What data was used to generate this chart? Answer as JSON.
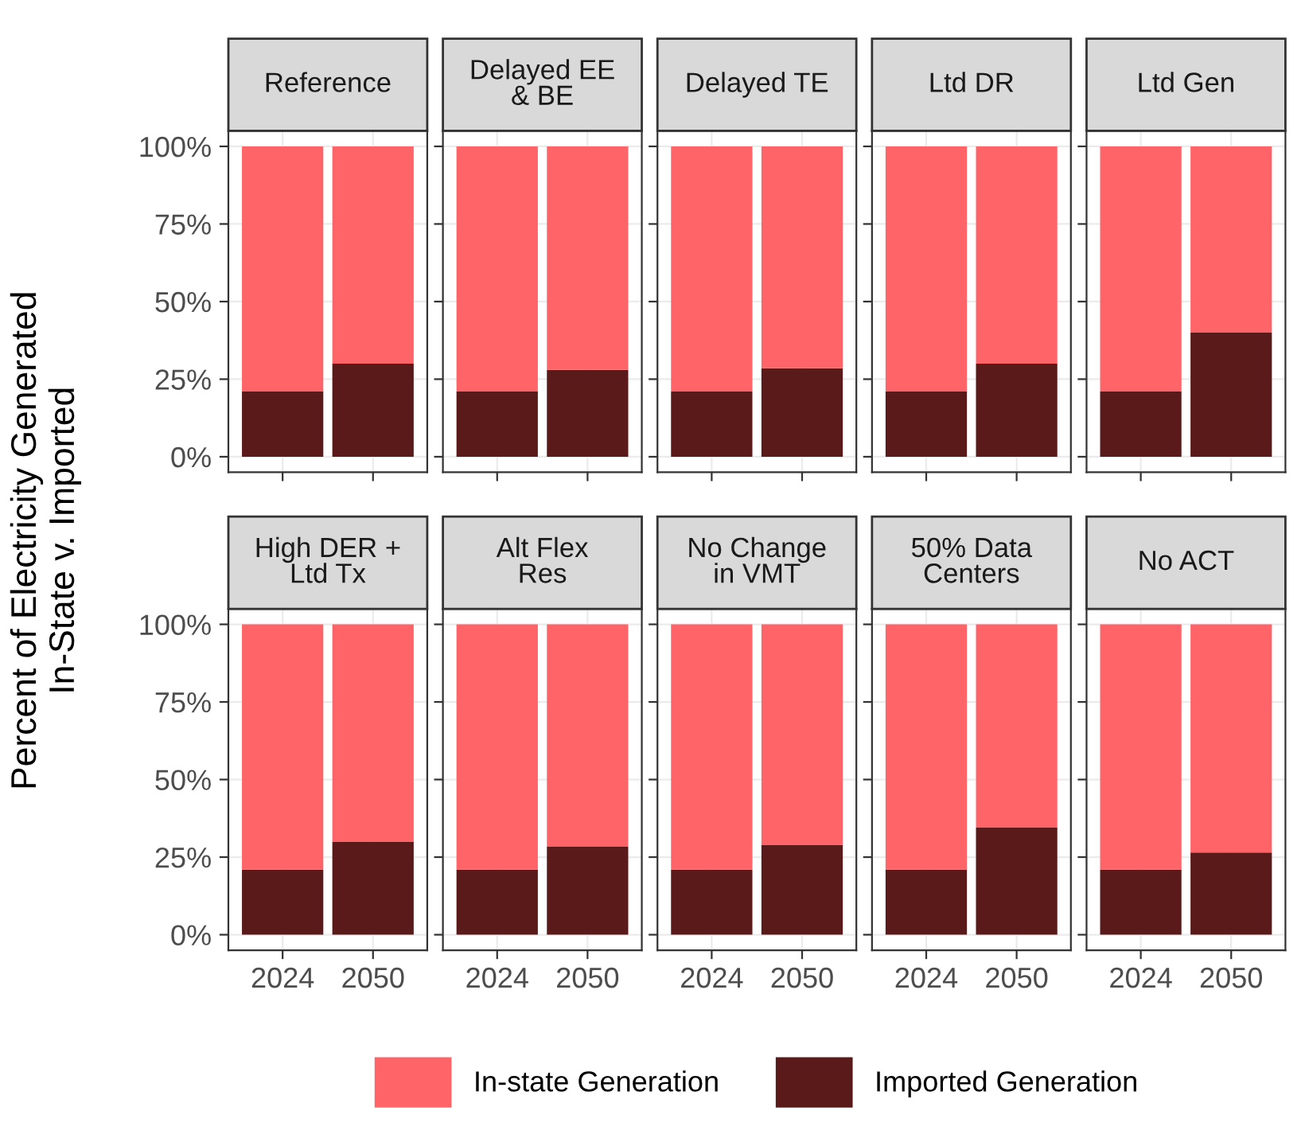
{
  "chart_data": [
    {
      "type": "bar",
      "stacked": true,
      "title": "Reference",
      "ylabel": "Percent of Electricity Generated\nIn-State v. Imported",
      "categories": [
        "2024",
        "2050"
      ],
      "ylim": [
        -5,
        105
      ],
      "yticks": [
        {
          "value": 0,
          "label": "0%"
        },
        {
          "value": 25,
          "label": "25%"
        },
        {
          "value": 50,
          "label": "50%"
        },
        {
          "value": 75,
          "label": "75%"
        },
        {
          "value": 100,
          "label": "100%"
        }
      ],
      "grid": true,
      "tick_labels": "y",
      "legend": "bottom",
      "series": [
        {
          "name": "Imported Generation",
          "color": "#5a1a1a",
          "values": [
            21,
            30
          ]
        },
        {
          "name": "In-state Generation",
          "color": "#ff6468",
          "values": [
            79,
            70
          ]
        }
      ]
    },
    {
      "type": "bar",
      "stacked": true,
      "title": "Delayed EE\n& BE",
      "categories": [
        "2024",
        "2050"
      ],
      "ylim": [
        -5,
        105
      ],
      "yticks": [
        {
          "value": 0,
          "label": null
        },
        {
          "value": 25,
          "label": null
        },
        {
          "value": 50,
          "label": null
        },
        {
          "value": 75,
          "label": null
        },
        {
          "value": 100,
          "label": null
        }
      ],
      "grid": true,
      "tick_labels": false,
      "series": [
        {
          "color": "#5a1a1a",
          "values": [
            21,
            28
          ]
        },
        {
          "color": "#ff6468",
          "values": [
            79,
            72
          ]
        }
      ]
    },
    {
      "type": "bar",
      "stacked": true,
      "title": "Delayed TE",
      "categories": [
        "2024",
        "2050"
      ],
      "ylim": [
        -5,
        105
      ],
      "yticks": [
        {
          "value": 0,
          "label": null
        },
        {
          "value": 25,
          "label": null
        },
        {
          "value": 50,
          "label": null
        },
        {
          "value": 75,
          "label": null
        },
        {
          "value": 100,
          "label": null
        }
      ],
      "grid": true,
      "tick_labels": false,
      "series": [
        {
          "color": "#5a1a1a",
          "values": [
            21,
            28.5
          ]
        },
        {
          "color": "#ff6468",
          "values": [
            79,
            71.5
          ]
        }
      ]
    },
    {
      "type": "bar",
      "stacked": true,
      "title": "Ltd DR",
      "categories": [
        "2024",
        "2050"
      ],
      "ylim": [
        -5,
        105
      ],
      "yticks": [
        {
          "value": 0,
          "label": null
        },
        {
          "value": 25,
          "label": null
        },
        {
          "value": 50,
          "label": null
        },
        {
          "value": 75,
          "label": null
        },
        {
          "value": 100,
          "label": null
        }
      ],
      "grid": true,
      "tick_labels": false,
      "series": [
        {
          "color": "#5a1a1a",
          "values": [
            21,
            30
          ]
        },
        {
          "color": "#ff6468",
          "values": [
            79,
            70
          ]
        }
      ]
    },
    {
      "type": "bar",
      "stacked": true,
      "title": "Ltd Gen",
      "categories": [
        "2024",
        "2050"
      ],
      "ylim": [
        -5,
        105
      ],
      "yticks": [
        {
          "value": 0,
          "label": null
        },
        {
          "value": 25,
          "label": null
        },
        {
          "value": 50,
          "label": null
        },
        {
          "value": 75,
          "label": null
        },
        {
          "value": 100,
          "label": null
        }
      ],
      "grid": true,
      "tick_labels": false,
      "series": [
        {
          "color": "#5a1a1a",
          "values": [
            21,
            40
          ]
        },
        {
          "color": "#ff6468",
          "values": [
            79,
            60
          ]
        }
      ]
    },
    {
      "type": "bar",
      "stacked": true,
      "title": "High DER +\nLtd Tx",
      "categories": [
        "2024",
        "2050"
      ],
      "ylim": [
        -5,
        105
      ],
      "yticks": [
        {
          "value": 0,
          "label": "0%"
        },
        {
          "value": 25,
          "label": "25%"
        },
        {
          "value": 50,
          "label": "50%"
        },
        {
          "value": 75,
          "label": "75%"
        },
        {
          "value": 100,
          "label": "100%"
        }
      ],
      "grid": true,
      "series": [
        {
          "color": "#5a1a1a",
          "values": [
            21,
            30
          ]
        },
        {
          "color": "#ff6468",
          "values": [
            79,
            70
          ]
        }
      ]
    },
    {
      "type": "bar",
      "stacked": true,
      "title": "Alt Flex\nRes",
      "categories": [
        "2024",
        "2050"
      ],
      "ylim": [
        -5,
        105
      ],
      "yticks": [
        {
          "value": 0,
          "label": null
        },
        {
          "value": 25,
          "label": null
        },
        {
          "value": 50,
          "label": null
        },
        {
          "value": 75,
          "label": null
        },
        {
          "value": 100,
          "label": null
        }
      ],
      "grid": true,
      "tick_labels": "x",
      "series": [
        {
          "color": "#5a1a1a",
          "values": [
            21,
            28.5
          ]
        },
        {
          "color": "#ff6468",
          "values": [
            79,
            71.5
          ]
        }
      ]
    },
    {
      "type": "bar",
      "stacked": true,
      "title": "No Change\nin VMT",
      "categories": [
        "2024",
        "2050"
      ],
      "ylim": [
        -5,
        105
      ],
      "yticks": [
        {
          "value": 0,
          "label": null
        },
        {
          "value": 25,
          "label": null
        },
        {
          "value": 50,
          "label": null
        },
        {
          "value": 75,
          "label": null
        },
        {
          "value": 100,
          "label": null
        }
      ],
      "grid": true,
      "tick_labels": "x",
      "series": [
        {
          "color": "#5a1a1a",
          "values": [
            21,
            29
          ]
        },
        {
          "color": "#ff6468",
          "values": [
            79,
            71
          ]
        }
      ]
    },
    {
      "type": "bar",
      "stacked": true,
      "title": "50% Data\nCenters",
      "categories": [
        "2024",
        "2050"
      ],
      "ylim": [
        -5,
        105
      ],
      "yticks": [
        {
          "value": 0,
          "label": null
        },
        {
          "value": 25,
          "label": null
        },
        {
          "value": 50,
          "label": null
        },
        {
          "value": 75,
          "label": null
        },
        {
          "value": 100,
          "label": null
        }
      ],
      "grid": true,
      "tick_labels": "x",
      "series": [
        {
          "color": "#5a1a1a",
          "values": [
            21,
            34.5
          ]
        },
        {
          "color": "#ff6468",
          "values": [
            79,
            65.5
          ]
        }
      ]
    },
    {
      "type": "bar",
      "stacked": true,
      "title": "No ACT",
      "categories": [
        "2024",
        "2050"
      ],
      "ylim": [
        -5,
        105
      ],
      "yticks": [
        {
          "value": 0,
          "label": null
        },
        {
          "value": 25,
          "label": null
        },
        {
          "value": 50,
          "label": null
        },
        {
          "value": 75,
          "label": null
        },
        {
          "value": 100,
          "label": null
        }
      ],
      "grid": true,
      "tick_labels": "x",
      "series": [
        {
          "color": "#5a1a1a",
          "values": [
            21,
            26.5
          ]
        },
        {
          "color": "#ff6468",
          "values": [
            79,
            73.5
          ]
        }
      ]
    }
  ]
}
